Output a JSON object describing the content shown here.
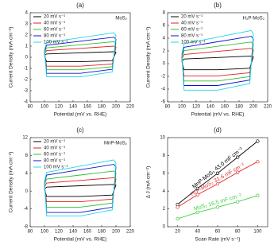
{
  "chart_data": [
    {
      "type": "line",
      "panel": "(a)",
      "sample": "MoS₂",
      "xlabel": "Potential  (mV vs. RHE)",
      "ylabel": "Current Density  (mA cm⁻²)",
      "xlim": [
        80,
        220
      ],
      "xticks": [
        80,
        100,
        120,
        140,
        160,
        180,
        200,
        220
      ],
      "ylim": [
        -4,
        4
      ],
      "yticks": [
        -4,
        -3,
        -2,
        -1,
        0,
        1,
        2,
        3,
        4
      ],
      "legend": "upper left",
      "x": [
        100,
        103,
        150,
        195,
        200,
        197,
        150,
        103,
        100
      ],
      "series": [
        {
          "name": "20 mV s⁻¹",
          "color": "#000000",
          "values": [
            0.15,
            -0.4,
            -0.4,
            -0.3,
            0.45,
            0.5,
            0.4,
            0.3,
            0.15
          ]
        },
        {
          "name": "40 mV s⁻¹",
          "color": "#e02020",
          "values": [
            0.3,
            -0.8,
            -0.8,
            -0.6,
            0.9,
            1.0,
            0.8,
            0.6,
            0.3
          ]
        },
        {
          "name": "60 mV s⁻¹",
          "color": "#30c030",
          "values": [
            0.42,
            -1.12,
            -1.12,
            -0.84,
            1.26,
            1.4,
            1.12,
            0.84,
            0.42
          ]
        },
        {
          "name": "80 mV s⁻¹",
          "color": "#1010d0",
          "values": [
            0.54,
            -1.44,
            -1.44,
            -1.08,
            1.62,
            1.8,
            1.44,
            1.08,
            0.54
          ]
        },
        {
          "name": "100 mV s⁻¹",
          "color": "#20d8e8",
          "values": [
            0.66,
            -1.76,
            -1.76,
            -1.32,
            1.98,
            2.2,
            1.76,
            1.32,
            0.66
          ]
        }
      ]
    },
    {
      "type": "line",
      "panel": "(b)",
      "sample": "H₂P-MoS₂",
      "xlabel": "Potential  (mV vs. RHE)",
      "ylabel": "Current Density  (mA cm⁻²)",
      "xlim": [
        80,
        220
      ],
      "xticks": [
        80,
        100,
        120,
        140,
        160,
        180,
        200,
        220
      ],
      "ylim": [
        -6,
        8
      ],
      "yticks": [
        -6,
        -4,
        -2,
        0,
        2,
        4,
        6,
        8
      ],
      "legend": "upper left",
      "x": [
        100,
        103,
        150,
        195,
        200,
        197,
        150,
        103,
        100
      ],
      "series": [
        {
          "name": "20 mV s⁻¹",
          "color": "#000000",
          "values": [
            0.36,
            -0.96,
            -0.96,
            -0.72,
            1.08,
            1.2,
            0.96,
            0.72,
            0.36
          ]
        },
        {
          "name": "40 mV s⁻¹",
          "color": "#e02020",
          "values": [
            0.72,
            -1.92,
            -1.92,
            -1.44,
            2.16,
            2.4,
            1.92,
            1.44,
            0.72
          ]
        },
        {
          "name": "60 mV s⁻¹",
          "color": "#30c030",
          "values": [
            1.02,
            -2.72,
            -2.72,
            -2.04,
            3.06,
            3.4,
            2.72,
            2.04,
            1.02
          ]
        },
        {
          "name": "80 mV s⁻¹",
          "color": "#1010d0",
          "values": [
            1.29,
            -3.44,
            -3.44,
            -2.58,
            3.87,
            4.3,
            3.44,
            2.58,
            1.29
          ]
        },
        {
          "name": "100 mV s⁻¹",
          "color": "#20d8e8",
          "values": [
            1.56,
            -4.16,
            -4.16,
            -3.12,
            4.68,
            5.2,
            4.16,
            3.12,
            1.56
          ]
        }
      ]
    },
    {
      "type": "line",
      "panel": "(c)",
      "sample": "MnP-MoS₂",
      "xlabel": "Potential  (mV vs. RHE)",
      "ylabel": "Current Density  (mA cm⁻²)",
      "xlim": [
        80,
        220
      ],
      "xticks": [
        80,
        100,
        120,
        140,
        160,
        180,
        200,
        220
      ],
      "ylim": [
        -8,
        12
      ],
      "yticks": [
        -8,
        -4,
        0,
        4,
        8,
        12
      ],
      "legend": "upper left",
      "x": [
        100,
        103,
        150,
        195,
        200,
        197,
        150,
        103,
        100
      ],
      "series": [
        {
          "name": "20 mV s⁻¹",
          "color": "#000000",
          "values": [
            0.45,
            -1.2,
            -1.2,
            -0.9,
            1.35,
            1.5,
            1.2,
            0.9,
            0.45
          ]
        },
        {
          "name": "40 mV s⁻¹",
          "color": "#e02020",
          "values": [
            0.9,
            -2.4,
            -2.4,
            -1.8,
            2.7,
            3,
            2.4,
            1.8,
            0.9
          ]
        },
        {
          "name": "60 mV s⁻¹",
          "color": "#30c030",
          "values": [
            1.35,
            -3.6,
            -3.6,
            -2.7,
            4.05,
            4.5,
            3.6,
            2.7,
            1.35
          ]
        },
        {
          "name": "80 mV s⁻¹",
          "color": "#1010d0",
          "values": [
            1.8,
            -4.8,
            -4.8,
            -3.6,
            5.4,
            6,
            4.8,
            3.6,
            1.8
          ]
        },
        {
          "name": "100 mV s⁻¹",
          "color": "#20d8e8",
          "values": [
            2.1,
            -5.6,
            -5.6,
            -4.2,
            6.3,
            7,
            5.6,
            4.2,
            2.1
          ]
        }
      ]
    },
    {
      "type": "scatter",
      "panel": "(d)",
      "xlabel": "Scan Rate  (mV s⁻¹)",
      "ylabel": "Δ J  (mA cm⁻²)",
      "xlim": [
        10,
        110
      ],
      "xticks": [
        20,
        40,
        60,
        80,
        100
      ],
      "ylim": [
        0,
        10
      ],
      "yticks": [
        0,
        2,
        4,
        6,
        8,
        10
      ],
      "x": [
        20,
        40,
        60,
        80,
        100
      ],
      "series": [
        {
          "name": "MnP-MoS₂ 43.0 mF cm⁻²",
          "color": "#000000",
          "values": [
            2.5,
            4.3,
            6.0,
            7.8,
            9.6
          ]
        },
        {
          "name": "H₂P-MoS₂ 31.6 mF cm⁻²",
          "color": "#e03030",
          "values": [
            2.2,
            3.6,
            4.8,
            6.1,
            7.3
          ]
        },
        {
          "name": "MoS₂ 16.5 mF cm⁻²",
          "color": "#40d040",
          "values": [
            0.9,
            1.6,
            2.2,
            2.8,
            3.5
          ]
        }
      ]
    }
  ]
}
